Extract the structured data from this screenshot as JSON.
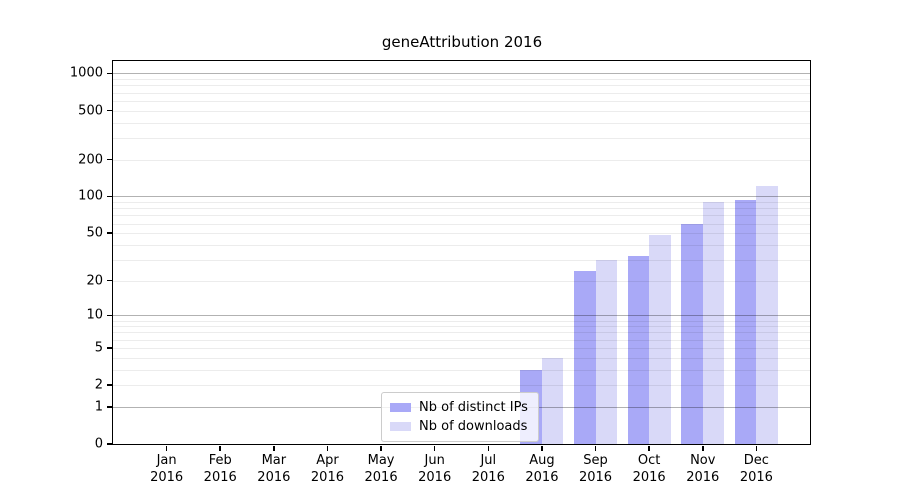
{
  "chart_data": {
    "type": "bar",
    "title": "geneAttribution 2016",
    "categories": [
      "Jan 2016",
      "Feb 2016",
      "Mar 2016",
      "Apr 2016",
      "May 2016",
      "Jun 2016",
      "Jul 2016",
      "Aug 2016",
      "Sep 2016",
      "Oct 2016",
      "Nov 2016",
      "Dec 2016"
    ],
    "month_labels": [
      "Jan",
      "Feb",
      "Mar",
      "Apr",
      "May",
      "Jun",
      "Jul",
      "Aug",
      "Sep",
      "Oct",
      "Nov",
      "Dec"
    ],
    "year_label": "2016",
    "series": [
      {
        "name": "Nb of distinct IPs",
        "color": "#a9a9f7",
        "values": [
          0,
          0,
          0,
          0,
          0,
          0,
          0,
          3,
          24,
          32,
          60,
          93
        ]
      },
      {
        "name": "Nb of downloads",
        "color": "#d9d9f8",
        "values": [
          0,
          0,
          0,
          0,
          0,
          0,
          0,
          4,
          30,
          48,
          90,
          122
        ]
      }
    ],
    "y_scale": "log1p",
    "y_ticks": [
      0,
      1,
      2,
      5,
      10,
      20,
      50,
      100,
      200,
      500,
      1000
    ],
    "y_axis_top_value": 1260,
    "grid": {
      "on": true,
      "major_lines_at": [
        1,
        10,
        100,
        1000
      ],
      "minor_lines": "2-9 of each decade"
    },
    "legend_position": "inside-bottom-left-of-center"
  },
  "colors": {
    "bar_distinct_ips": "#a9a9f7",
    "bar_downloads": "#d9d9f8",
    "grid_major": "rgba(0,0,0,0.30)",
    "grid_minor": "rgba(0,0,0,0.075)",
    "axis_frame": "#000000",
    "legend_border": "#cccccc",
    "background": "#ffffff",
    "text": "#000000"
  }
}
